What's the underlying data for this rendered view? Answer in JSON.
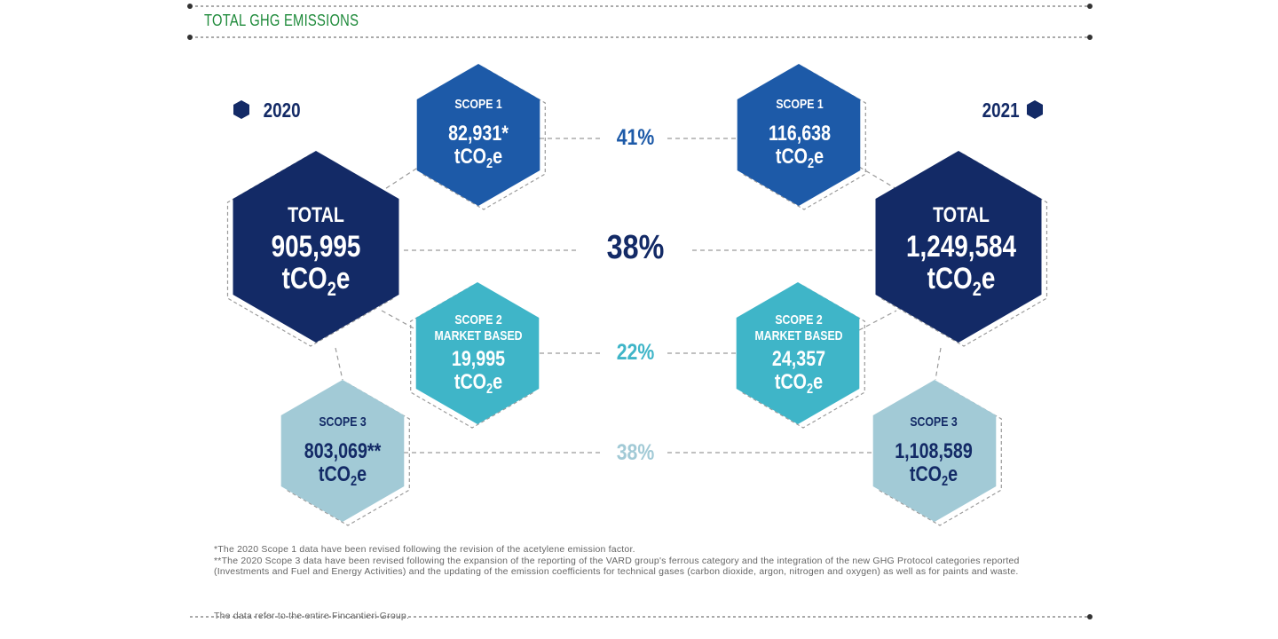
{
  "header": {
    "title": "TOTAL GHG EMISSIONS"
  },
  "years": {
    "left": "2020",
    "right": "2021"
  },
  "hex": {
    "scope1_2020": {
      "label": "SCOPE 1",
      "value": "82,931*",
      "unit_pre": "tCO",
      "unit_sub": "2",
      "unit_post": "e"
    },
    "scope1_2021": {
      "label": "SCOPE 1",
      "value": "116,638",
      "unit_pre": "tCO",
      "unit_sub": "2",
      "unit_post": "e"
    },
    "total_2020": {
      "label": "TOTAL",
      "value": "905,995",
      "unit_pre": "tCO",
      "unit_sub": "2",
      "unit_post": "e"
    },
    "total_2021": {
      "label": "TOTAL",
      "value": "1,249,584",
      "unit_pre": "tCO",
      "unit_sub": "2",
      "unit_post": "e"
    },
    "scope2_2020": {
      "label_line1": "SCOPE 2",
      "label_line2": "MARKET BASED",
      "value": "19,995",
      "unit_pre": "tCO",
      "unit_sub": "2",
      "unit_post": "e"
    },
    "scope2_2021": {
      "label_line1": "SCOPE 2",
      "label_line2": "MARKET BASED",
      "value": "24,357",
      "unit_pre": "tCO",
      "unit_sub": "2",
      "unit_post": "e"
    },
    "scope3_2020": {
      "label": "SCOPE 3",
      "value": "803,069**",
      "unit_pre": "tCO",
      "unit_sub": "2",
      "unit_post": "e"
    },
    "scope3_2021": {
      "label": "SCOPE 3",
      "value": "1,108,589",
      "unit_pre": "tCO",
      "unit_sub": "2",
      "unit_post": "e"
    }
  },
  "changes": {
    "scope1": "41%",
    "total": "38%",
    "scope2": "22%",
    "scope3": "38%"
  },
  "notes": {
    "note1": "*The 2020 Scope 1 data have been revised following the revision of the acetylene emission factor.",
    "note2": "**The 2020 Scope 3 data have been revised following the expansion of the reporting of the VARD group's ferrous category and the integration of the new GHG Protocol categories reported (Investments and Fuel and Energy Activities) and the updating of the emission coefficients for technical gases (carbon dioxide, argon, nitrogen and oxygen) as well as for paints and waste."
  },
  "footer": {
    "text": "The data refer to the entire Fincantieri Group."
  },
  "colors": {
    "title_green": "#1e8a3a",
    "navy": "#132a66",
    "scope1_blue": "#1d5aa8",
    "scope2_teal": "#3fb5c8",
    "scope3_light": "#a2cad6",
    "dash_gray": "#9a9a9a"
  }
}
